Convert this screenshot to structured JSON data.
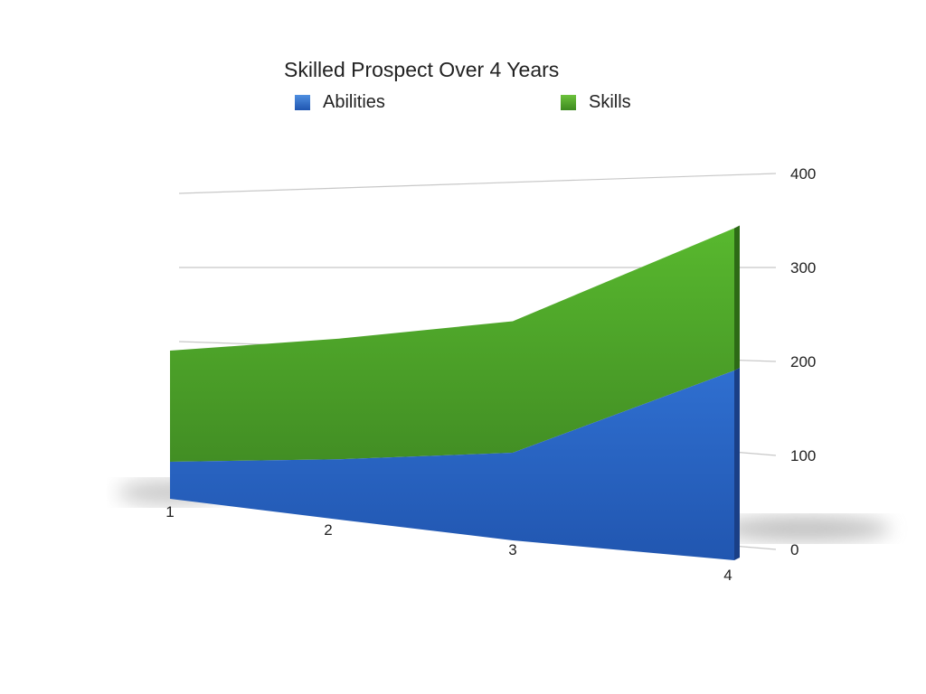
{
  "chart_data": {
    "type": "area",
    "stacked": true,
    "title": "Skilled Prospect Over 4 Years",
    "categories": [
      "1",
      "2",
      "3",
      "4"
    ],
    "series": [
      {
        "name": "Abilities",
        "values": [
          50,
          75,
          100,
          200
        ],
        "color": "#2a62c0"
      },
      {
        "name": "Skills",
        "values": [
          150,
          150,
          150,
          150
        ],
        "color": "#4c9a2a"
      }
    ],
    "yticks": [
      0,
      100,
      200,
      300,
      400
    ],
    "ylim": [
      0,
      400
    ],
    "xlabel": "",
    "ylabel": "",
    "grid": true,
    "legend": "top"
  }
}
